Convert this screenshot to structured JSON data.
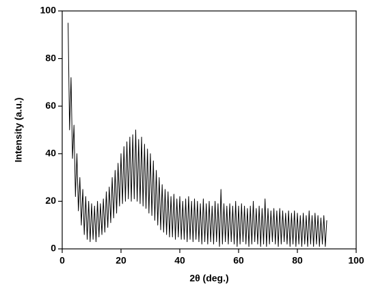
{
  "chart_data": {
    "type": "line",
    "xlabel": "2θ (deg.)",
    "ylabel": "Intensity (a.u.)",
    "xlim": [
      0,
      100
    ],
    "xticks": [
      0,
      20,
      40,
      60,
      80,
      100
    ],
    "ylim": [
      0,
      100
    ],
    "yticks": [
      0,
      20,
      40,
      60,
      80,
      100
    ],
    "grid": false,
    "series": [
      {
        "color": "#000000",
        "x": [
          2,
          2.5,
          3,
          3.5,
          4,
          4.5,
          5,
          5.5,
          6,
          6.5,
          7,
          7.5,
          8,
          8.5,
          9,
          9.5,
          10,
          10.5,
          11,
          11.5,
          12,
          12.5,
          13,
          13.5,
          14,
          14.5,
          15,
          15.5,
          16,
          16.5,
          17,
          17.5,
          18,
          18.5,
          19,
          19.5,
          20,
          20.5,
          21,
          21.5,
          22,
          22.5,
          23,
          23.5,
          24,
          24.5,
          25,
          25.5,
          26,
          26.5,
          27,
          27.5,
          28,
          28.5,
          29,
          29.5,
          30,
          30.5,
          31,
          31.5,
          32,
          32.5,
          33,
          33.5,
          34,
          34.5,
          35,
          35.5,
          36,
          36.5,
          37,
          37.5,
          38,
          38.5,
          39,
          39.5,
          40,
          40.5,
          41,
          41.5,
          42,
          42.5,
          43,
          43.5,
          44,
          44.5,
          45,
          45.5,
          46,
          46.5,
          47,
          47.5,
          48,
          48.5,
          49,
          49.5,
          50,
          50.5,
          51,
          51.5,
          52,
          52.5,
          53,
          53.5,
          54,
          54.5,
          55,
          55.5,
          56,
          56.5,
          57,
          57.5,
          58,
          58.5,
          59,
          59.5,
          60,
          60.5,
          61,
          61.5,
          62,
          62.5,
          63,
          63.5,
          64,
          64.5,
          65,
          65.5,
          66,
          66.5,
          67,
          67.5,
          68,
          68.5,
          69,
          69.5,
          70,
          70.5,
          71,
          71.5,
          72,
          72.5,
          73,
          73.5,
          74,
          74.5,
          75,
          75.5,
          76,
          76.5,
          77,
          77.5,
          78,
          78.5,
          79,
          79.5,
          80,
          80.5,
          81,
          81.5,
          82,
          82.5,
          83,
          83.5,
          84,
          84.5,
          85,
          85.5,
          86,
          86.5,
          87,
          87.5,
          88,
          88.5,
          89,
          89.5,
          90
        ],
        "values": [
          95,
          50,
          72,
          38,
          52,
          22,
          40,
          16,
          30,
          10,
          25,
          6,
          22,
          4,
          20,
          3,
          19,
          4,
          18,
          3,
          20,
          5,
          19,
          6,
          21,
          7,
          24,
          9,
          26,
          11,
          30,
          13,
          33,
          15,
          36,
          18,
          40,
          19,
          43,
          20,
          45,
          21,
          47,
          20,
          48,
          21,
          50,
          20,
          46,
          19,
          47,
          18,
          44,
          17,
          42,
          15,
          40,
          14,
          37,
          12,
          33,
          10,
          30,
          8,
          27,
          7,
          25,
          6,
          24,
          5,
          22,
          5,
          23,
          4,
          21,
          5,
          22,
          4,
          20,
          4,
          21,
          3,
          22,
          4,
          20,
          3,
          21,
          4,
          20,
          3,
          19,
          2,
          21,
          3,
          19,
          2,
          20,
          3,
          18,
          2,
          20,
          3,
          19,
          1,
          25,
          2,
          19,
          3,
          18,
          2,
          19,
          3,
          18,
          2,
          20,
          1,
          18,
          2,
          19,
          3,
          18,
          2,
          17,
          1,
          18,
          2,
          20,
          3,
          17,
          2,
          18,
          1,
          17,
          2,
          21,
          1,
          17,
          2,
          16,
          3,
          17,
          2,
          16,
          1,
          17,
          2,
          16,
          3,
          15,
          2,
          16,
          1,
          15,
          2,
          16,
          1,
          15,
          2,
          14,
          1,
          15,
          2,
          14,
          1,
          16,
          2,
          14,
          1,
          15,
          2,
          14,
          1,
          13,
          2,
          14,
          1,
          12
        ]
      }
    ]
  }
}
